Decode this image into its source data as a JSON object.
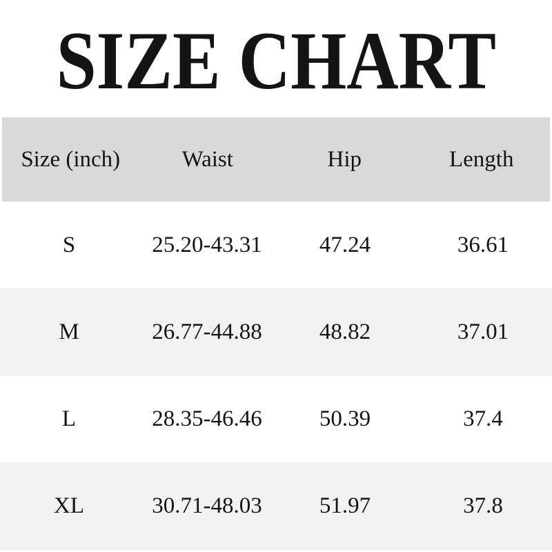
{
  "title": "SIZE CHART",
  "chart_data": {
    "type": "table",
    "title": "SIZE CHART",
    "unit": "inch",
    "columns": [
      "Size (inch)",
      "Waist",
      "Hip",
      "Length"
    ],
    "rows": [
      [
        "S",
        "25.20-43.31",
        "47.24",
        "36.61"
      ],
      [
        "M",
        "26.77-44.88",
        "48.82",
        "37.01"
      ],
      [
        "L",
        "28.35-46.46",
        "50.39",
        "37.4"
      ],
      [
        "XL",
        "30.71-48.03",
        "51.97",
        "37.8"
      ]
    ]
  },
  "colors": {
    "page_bg": "#ffffff",
    "header_bg": "#d9d9d9",
    "row_bg": "#ffffff",
    "row_alt_bg": "#f2f2f2",
    "text": "#141414"
  }
}
